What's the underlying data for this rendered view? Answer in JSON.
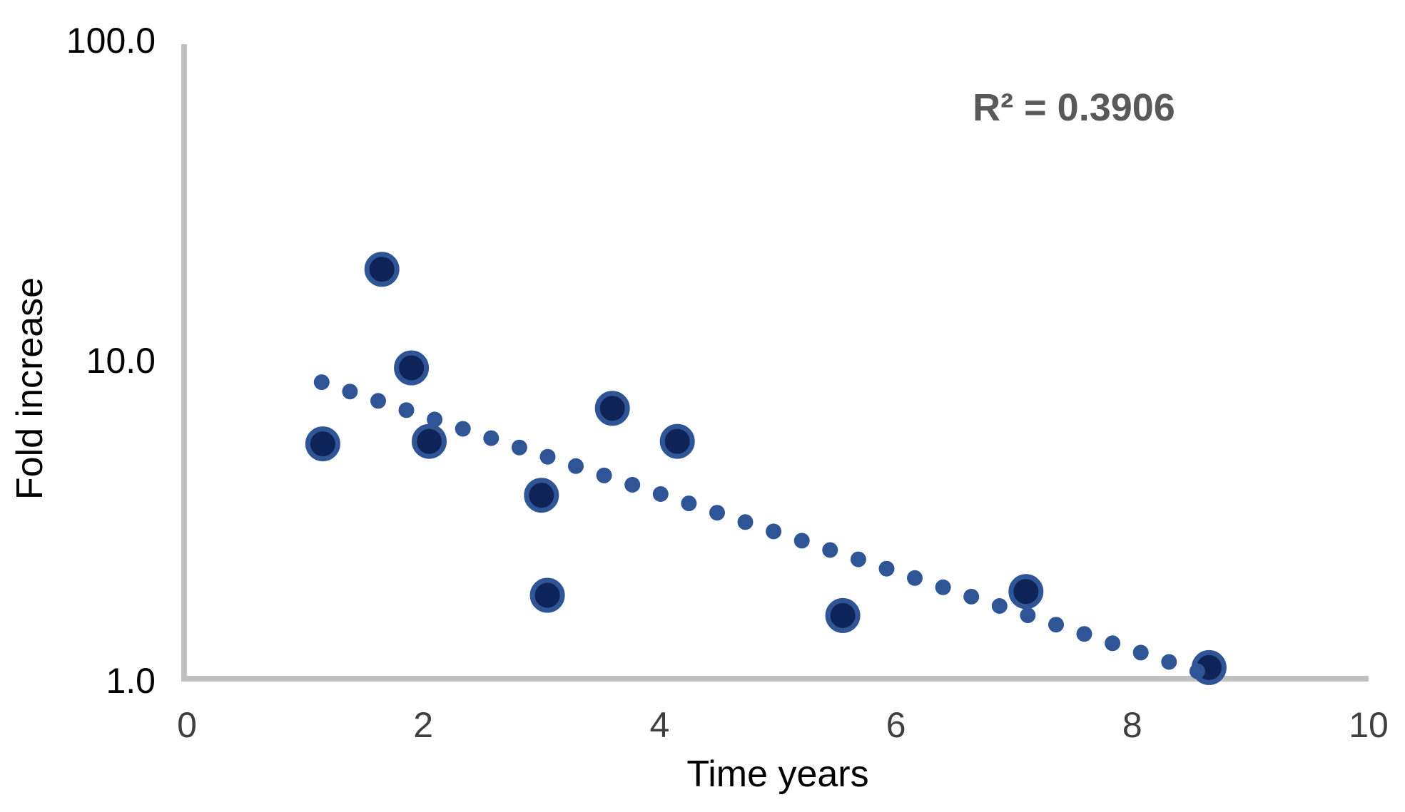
{
  "chart_data": {
    "type": "scatter",
    "title": "",
    "xlabel": "Time years",
    "ylabel": "Fold increase",
    "annotation": "R² = 0.3906",
    "x_axis": {
      "label": "Time years",
      "scale": "linear",
      "min": 0,
      "max": 10,
      "tick_values": [
        0,
        2,
        4,
        6,
        8,
        10
      ],
      "tick_labels": [
        "0",
        "2",
        "4",
        "6",
        "8",
        "10"
      ],
      "gridlines": false
    },
    "y_axis": {
      "label": "Fold increase",
      "scale": "log10",
      "min": 1.0,
      "max": 100.0,
      "tick_values": [
        100,
        10,
        1
      ],
      "tick_labels": [
        "100.0",
        "10.0",
        "1.0"
      ],
      "gridlines": false
    },
    "series": [
      {
        "name": "fold-increase-points",
        "marker": "filled-circle-with-ring",
        "points": [
          [
            1.15,
            5.5
          ],
          [
            1.65,
            19.3
          ],
          [
            1.9,
            9.5
          ],
          [
            2.05,
            5.6
          ],
          [
            3.0,
            3.8
          ],
          [
            3.05,
            1.85
          ],
          [
            3.6,
            7.1
          ],
          [
            4.15,
            5.6
          ],
          [
            5.55,
            1.6
          ],
          [
            7.1,
            1.9
          ],
          [
            8.65,
            1.1
          ]
        ]
      }
    ],
    "trendline": {
      "model": "exponential",
      "style": "dotted",
      "a": 11.8,
      "k": -0.2806,
      "equation_form": "y = 11.8·e^(-0.28x)",
      "x_start": 1.14,
      "x_end": 8.55,
      "num_dots": 32,
      "r_squared": 0.3906
    },
    "legend": "none",
    "colors": {
      "marker_fill": "#0e2357",
      "marker_border": "#2f5596",
      "trendline_dot": "#2f5596",
      "axis_line": "#c0c0c0",
      "y_tick_text": "#000000",
      "x_tick_text": "#3f3f3f",
      "axis_title_text": "#000000",
      "annotation_text": "#595959",
      "background": "#ffffff"
    }
  }
}
